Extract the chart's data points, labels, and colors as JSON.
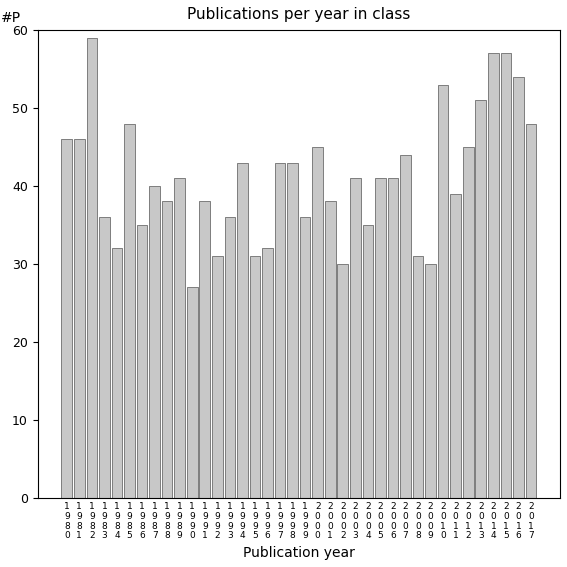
{
  "title": "Publications per year in class",
  "xlabel": "Publication year",
  "ylabel": "#P",
  "bar_color": "#c8c8c8",
  "edge_color": "#555555",
  "background_color": "#ffffff",
  "ylim": [
    0,
    60
  ],
  "yticks": [
    0,
    10,
    20,
    30,
    40,
    50,
    60
  ],
  "years": [
    1980,
    1981,
    1982,
    1983,
    1984,
    1985,
    1986,
    1987,
    1988,
    1989,
    1990,
    1991,
    1992,
    1993,
    1994,
    1995,
    1996,
    1997,
    1998,
    1999,
    2000,
    2001,
    2002,
    2003,
    2004,
    2005,
    2006,
    2007,
    2008,
    2009,
    2010,
    2011,
    2012,
    2013,
    2014,
    2015,
    2016,
    2017
  ],
  "values": [
    46,
    46,
    59,
    36,
    32,
    48,
    35,
    40,
    38,
    41,
    27,
    38,
    31,
    36,
    43,
    31,
    32,
    43,
    43,
    36,
    45,
    38,
    30,
    41,
    35,
    41,
    41,
    44,
    31,
    30,
    53,
    39,
    45,
    51,
    57,
    57,
    54,
    48
  ]
}
